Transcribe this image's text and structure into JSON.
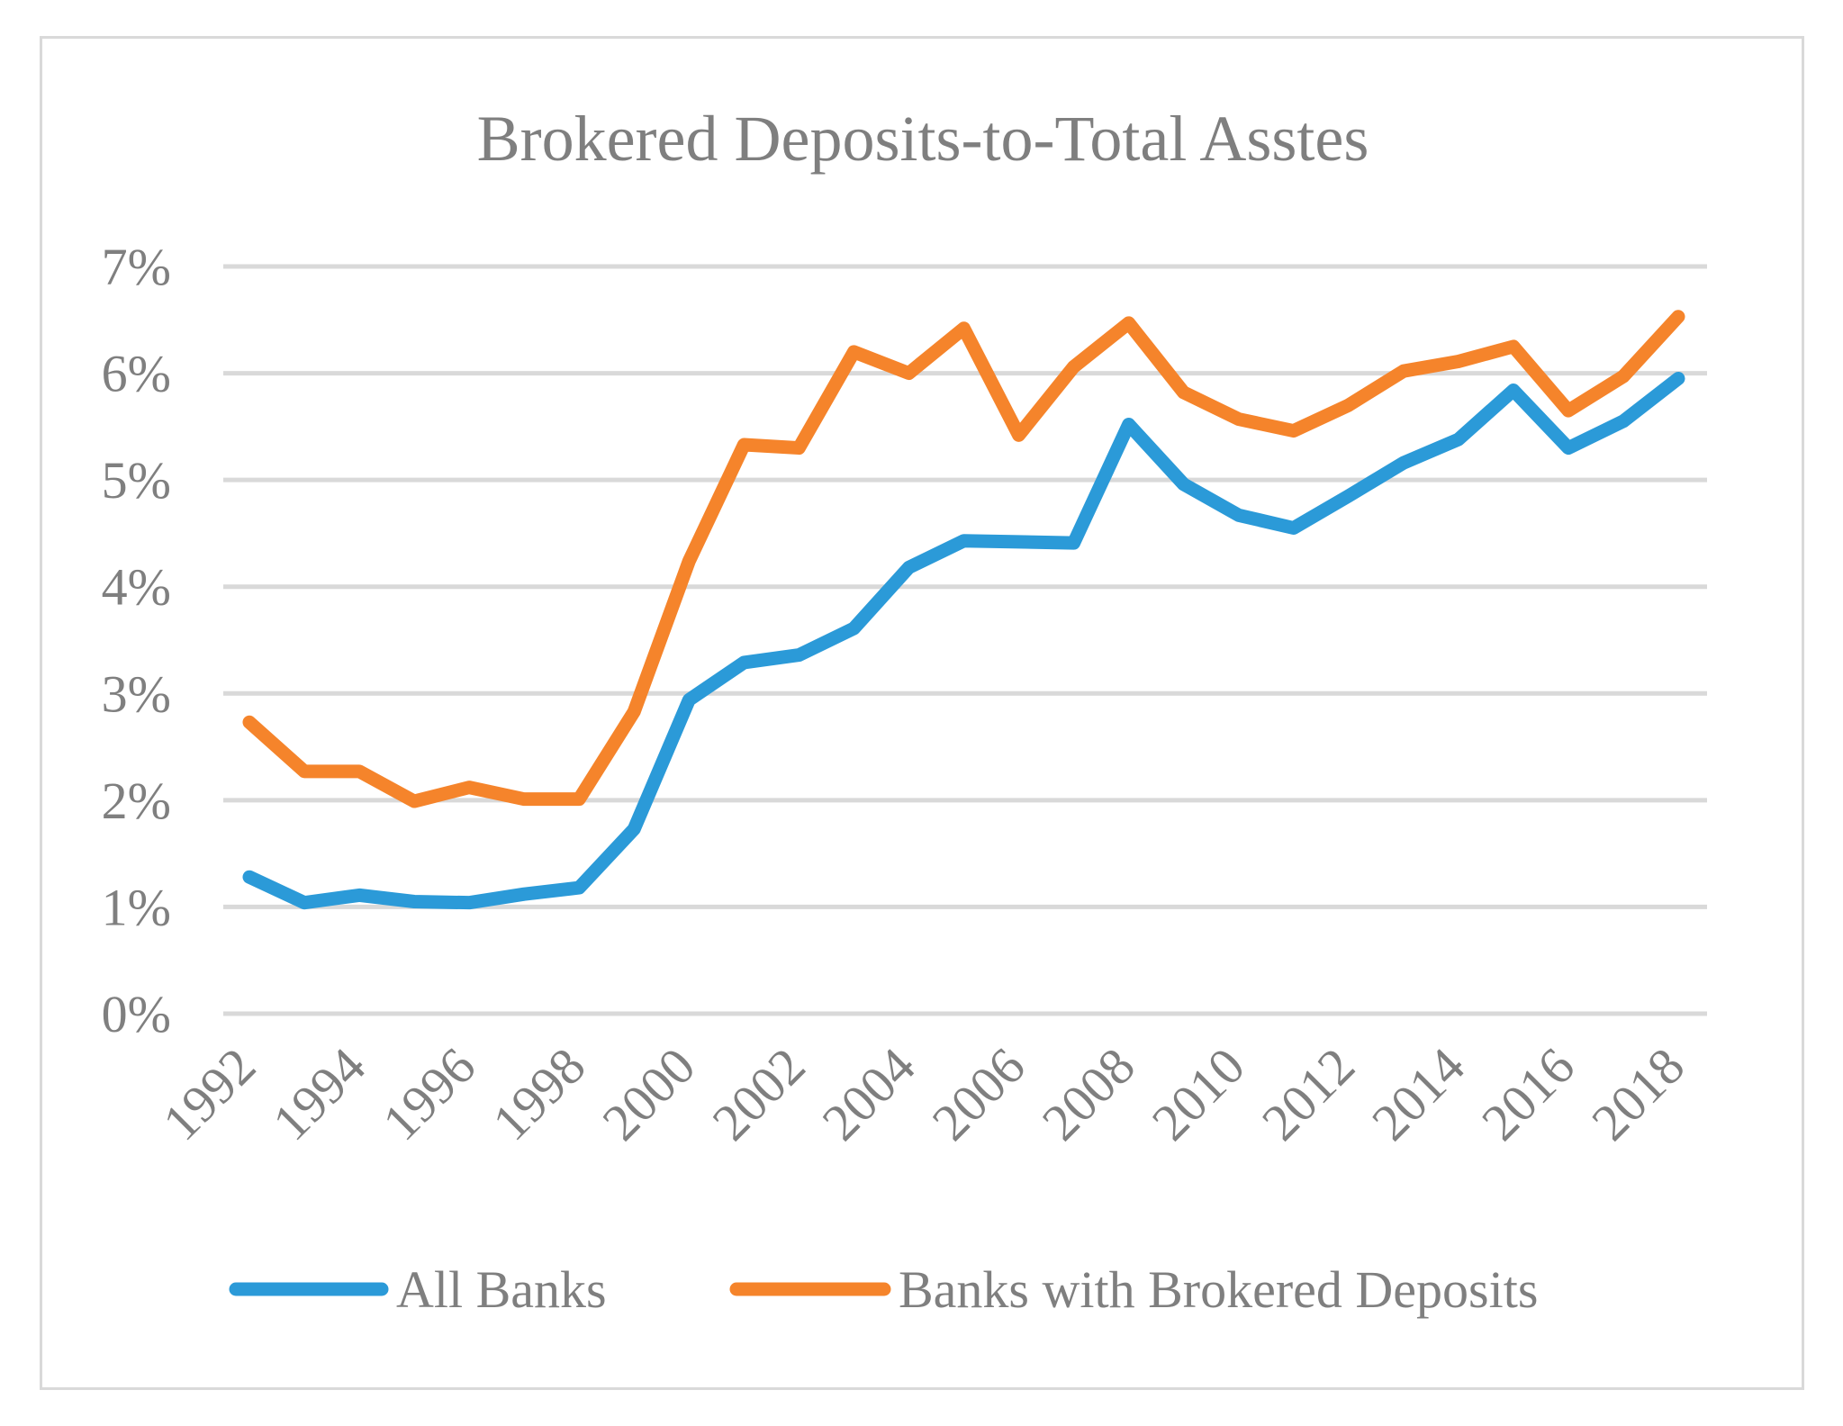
{
  "chart_data": {
    "type": "line",
    "title": "Brokered Deposits-to-Total Asstes",
    "xlabel": "",
    "ylabel": "",
    "x": [
      1992,
      1993,
      1994,
      1995,
      1996,
      1997,
      1998,
      1999,
      2000,
      2001,
      2002,
      2003,
      2004,
      2005,
      2006,
      2007,
      2008,
      2009,
      2010,
      2011,
      2012,
      2013,
      2014,
      2015,
      2016,
      2017,
      2018
    ],
    "x_tick_labels": [
      "1992",
      "1994",
      "1996",
      "1998",
      "2000",
      "2002",
      "2004",
      "2006",
      "2008",
      "2010",
      "2012",
      "2014",
      "2016",
      "2018"
    ],
    "ylim": [
      0,
      0.07
    ],
    "y_tick_labels": [
      "0%",
      "1%",
      "2%",
      "3%",
      "4%",
      "5%",
      "6%",
      "7%"
    ],
    "grid": true,
    "legend_position": "bottom",
    "series": [
      {
        "name": "All Banks",
        "color": "#2b9ad8",
        "values": [
          0.0128,
          0.0104,
          0.0111,
          0.0105,
          0.0104,
          0.0112,
          0.0118,
          0.0173,
          0.0294,
          0.0329,
          0.0336,
          0.0361,
          0.0418,
          0.0443,
          0.0442,
          0.0441,
          0.0552,
          0.0496,
          0.0467,
          0.0455,
          0.0485,
          0.0516,
          0.0538,
          0.0584,
          0.053,
          0.0555,
          0.0595
        ]
      },
      {
        "name": "Banks with Brokered Deposits",
        "color": "#f5842b",
        "values": [
          0.0273,
          0.0227,
          0.0227,
          0.0199,
          0.0212,
          0.0201,
          0.0201,
          0.0283,
          0.0424,
          0.0533,
          0.053,
          0.062,
          0.06,
          0.0642,
          0.0542,
          0.0606,
          0.0647,
          0.0582,
          0.0557,
          0.0546,
          0.057,
          0.0602,
          0.0611,
          0.0625,
          0.0565,
          0.0597,
          0.0653
        ]
      }
    ]
  }
}
